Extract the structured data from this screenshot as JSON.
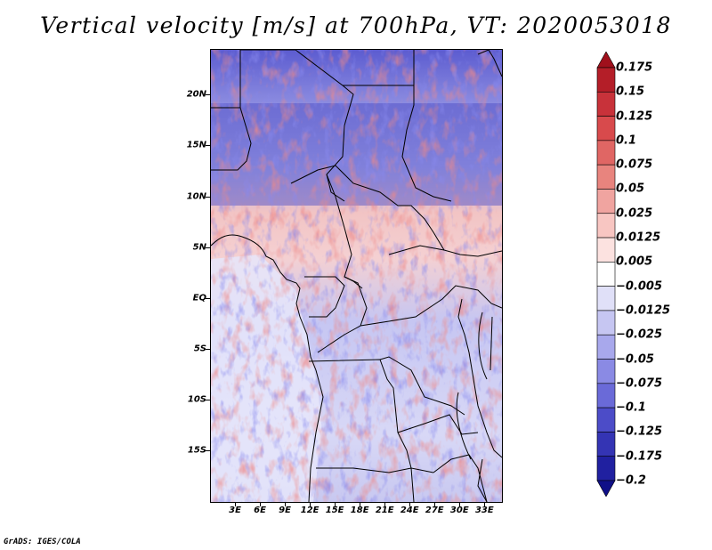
{
  "title": "Vertical velocity [m/s] at 700hPa, VT: 2020053018",
  "credit": "GrADS: IGES/COLA",
  "map": {
    "variable": "Vertical velocity",
    "units": "m/s",
    "level": "700hPa",
    "valid_time": "2020053018",
    "lat_range": [
      -20,
      24.5
    ],
    "lon_range": [
      0,
      35
    ],
    "lat_ticks": [
      {
        "value": 20,
        "label": "20N"
      },
      {
        "value": 15,
        "label": "15N"
      },
      {
        "value": 10,
        "label": "10N"
      },
      {
        "value": 5,
        "label": "5N"
      },
      {
        "value": 0,
        "label": "EQ"
      },
      {
        "value": -5,
        "label": "5S"
      },
      {
        "value": -10,
        "label": "10S"
      },
      {
        "value": -15,
        "label": "15S"
      }
    ],
    "lon_ticks": [
      {
        "value": 3,
        "label": "3E"
      },
      {
        "value": 6,
        "label": "6E"
      },
      {
        "value": 9,
        "label": "9E"
      },
      {
        "value": 12,
        "label": "12E"
      },
      {
        "value": 15,
        "label": "15E"
      },
      {
        "value": 18,
        "label": "18E"
      },
      {
        "value": 21,
        "label": "21E"
      },
      {
        "value": 24,
        "label": "24E"
      },
      {
        "value": 27,
        "label": "27E"
      },
      {
        "value": 30,
        "label": "30E"
      },
      {
        "value": 33,
        "label": "33E"
      }
    ]
  },
  "colorbar": {
    "labels": [
      "0.175",
      "0.15",
      "0.125",
      "0.1",
      "0.075",
      "0.05",
      "0.025",
      "0.0125",
      "0.005",
      "−0.005",
      "−0.0125",
      "−0.025",
      "−0.05",
      "−0.075",
      "−0.1",
      "−0.125",
      "−0.175",
      "−0.2"
    ],
    "colors": [
      "#a0101c",
      "#b41e28",
      "#c8323a",
      "#d84a4c",
      "#e06664",
      "#e8847e",
      "#f0a4a0",
      "#f8c6c2",
      "#fce2e0",
      "#ffffff",
      "#e0e0f8",
      "#c6c6f2",
      "#a8a8ec",
      "#8a8ae4",
      "#6a6ad8",
      "#4c4cc8",
      "#3434b4",
      "#2020a0",
      "#101088"
    ]
  }
}
